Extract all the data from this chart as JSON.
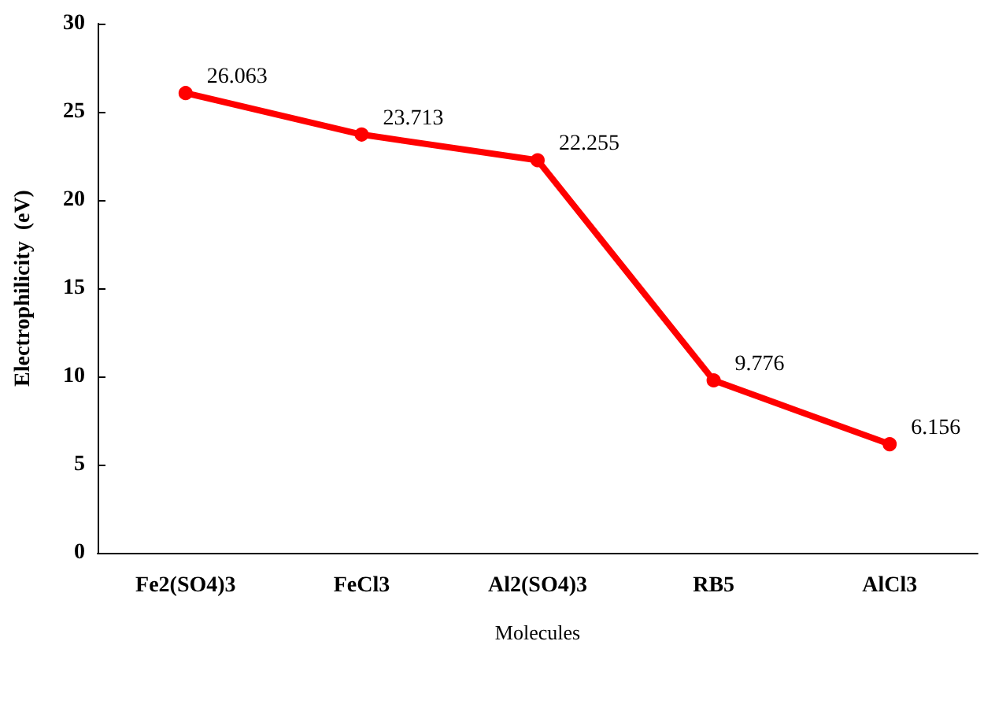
{
  "chart_data": {
    "type": "line",
    "xlabel": "Molecules",
    "ylabel": "Electrophilicity  (eV)",
    "categories": [
      "Fe2(SO4)3",
      "FeCl3",
      "Al2(SO4)3",
      "RB5",
      "AlCl3"
    ],
    "series": [
      {
        "color": "#ff0000",
        "values": [
          26.063,
          23.713,
          22.255,
          9.776,
          6.156
        ]
      }
    ],
    "ylim": [
      0,
      30
    ],
    "yticks": [
      0,
      5,
      10,
      15,
      20,
      25,
      30
    ],
    "grid": false,
    "marker": "circle",
    "line_style": "solid",
    "data_labels": true
  }
}
